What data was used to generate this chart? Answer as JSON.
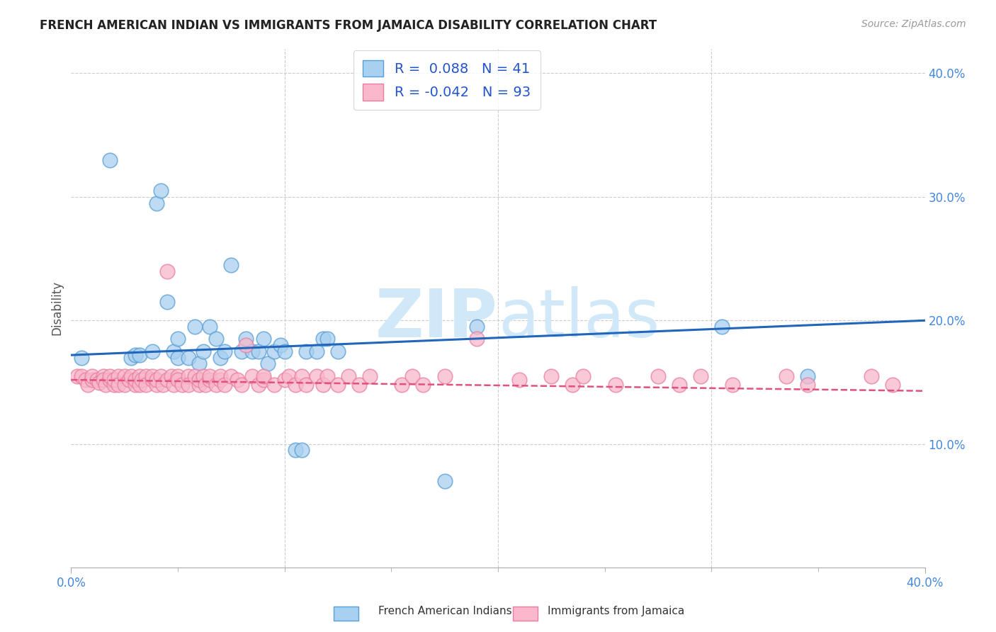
{
  "title": "FRENCH AMERICAN INDIAN VS IMMIGRANTS FROM JAMAICA DISABILITY CORRELATION CHART",
  "source": "Source: ZipAtlas.com",
  "ylabel": "Disability",
  "xlim": [
    0.0,
    0.4
  ],
  "ylim": [
    0.0,
    0.42
  ],
  "y_ticks": [
    0.1,
    0.2,
    0.3,
    0.4
  ],
  "y_tick_labels": [
    "10.0%",
    "20.0%",
    "30.0%",
    "40.0%"
  ],
  "blue_R": 0.088,
  "blue_N": 41,
  "pink_R": -0.042,
  "pink_N": 93,
  "blue_fill_color": "#a8d0f0",
  "blue_edge_color": "#5a9fd4",
  "pink_fill_color": "#f9b8cc",
  "pink_edge_color": "#e87fa0",
  "blue_line_color": "#2266bb",
  "pink_line_color": "#e05080",
  "legend_label_blue": "French American Indians",
  "legend_label_pink": "Immigrants from Jamaica",
  "watermark_color": "#d0e8f8",
  "blue_line_y0": 0.172,
  "blue_line_y1": 0.2,
  "pink_line_y0": 0.152,
  "pink_line_y1": 0.143,
  "blue_x": [
    0.005,
    0.018,
    0.028,
    0.03,
    0.032,
    0.038,
    0.04,
    0.042,
    0.045,
    0.048,
    0.05,
    0.05,
    0.055,
    0.058,
    0.06,
    0.062,
    0.065,
    0.068,
    0.07,
    0.072,
    0.075,
    0.08,
    0.082,
    0.085,
    0.088,
    0.09,
    0.092,
    0.095,
    0.098,
    0.1,
    0.105,
    0.108,
    0.11,
    0.115,
    0.118,
    0.12,
    0.125,
    0.175,
    0.19,
    0.305,
    0.345
  ],
  "blue_y": [
    0.17,
    0.33,
    0.17,
    0.172,
    0.172,
    0.175,
    0.295,
    0.305,
    0.215,
    0.175,
    0.17,
    0.185,
    0.17,
    0.195,
    0.165,
    0.175,
    0.195,
    0.185,
    0.17,
    0.175,
    0.245,
    0.175,
    0.185,
    0.175,
    0.175,
    0.185,
    0.165,
    0.175,
    0.18,
    0.175,
    0.095,
    0.095,
    0.175,
    0.175,
    0.185,
    0.185,
    0.175,
    0.07,
    0.195,
    0.195,
    0.155
  ],
  "pink_x": [
    0.003,
    0.005,
    0.007,
    0.008,
    0.01,
    0.01,
    0.012,
    0.013,
    0.015,
    0.015,
    0.016,
    0.018,
    0.018,
    0.02,
    0.02,
    0.022,
    0.022,
    0.025,
    0.025,
    0.027,
    0.028,
    0.03,
    0.03,
    0.032,
    0.032,
    0.033,
    0.035,
    0.035,
    0.038,
    0.038,
    0.04,
    0.04,
    0.042,
    0.043,
    0.045,
    0.045,
    0.047,
    0.048,
    0.05,
    0.05,
    0.052,
    0.055,
    0.055,
    0.058,
    0.06,
    0.06,
    0.062,
    0.063,
    0.065,
    0.065,
    0.068,
    0.07,
    0.07,
    0.072,
    0.075,
    0.078,
    0.08,
    0.082,
    0.085,
    0.088,
    0.09,
    0.09,
    0.095,
    0.1,
    0.102,
    0.105,
    0.108,
    0.11,
    0.115,
    0.118,
    0.12,
    0.125,
    0.13,
    0.135,
    0.14,
    0.155,
    0.16,
    0.165,
    0.175,
    0.19,
    0.21,
    0.225,
    0.235,
    0.24,
    0.255,
    0.275,
    0.285,
    0.295,
    0.31,
    0.335,
    0.345,
    0.375,
    0.385
  ],
  "pink_y": [
    0.155,
    0.155,
    0.152,
    0.148,
    0.152,
    0.155,
    0.152,
    0.15,
    0.155,
    0.152,
    0.148,
    0.152,
    0.155,
    0.148,
    0.152,
    0.155,
    0.148,
    0.155,
    0.148,
    0.152,
    0.155,
    0.148,
    0.152,
    0.155,
    0.148,
    0.152,
    0.155,
    0.148,
    0.152,
    0.155,
    0.148,
    0.152,
    0.155,
    0.148,
    0.24,
    0.152,
    0.155,
    0.148,
    0.155,
    0.152,
    0.148,
    0.155,
    0.148,
    0.155,
    0.148,
    0.152,
    0.155,
    0.148,
    0.152,
    0.155,
    0.148,
    0.152,
    0.155,
    0.148,
    0.155,
    0.152,
    0.148,
    0.18,
    0.155,
    0.148,
    0.152,
    0.155,
    0.148,
    0.152,
    0.155,
    0.148,
    0.155,
    0.148,
    0.155,
    0.148,
    0.155,
    0.148,
    0.155,
    0.148,
    0.155,
    0.148,
    0.155,
    0.148,
    0.155,
    0.185,
    0.152,
    0.155,
    0.148,
    0.155,
    0.148,
    0.155,
    0.148,
    0.155,
    0.148,
    0.155,
    0.148,
    0.155,
    0.148
  ]
}
